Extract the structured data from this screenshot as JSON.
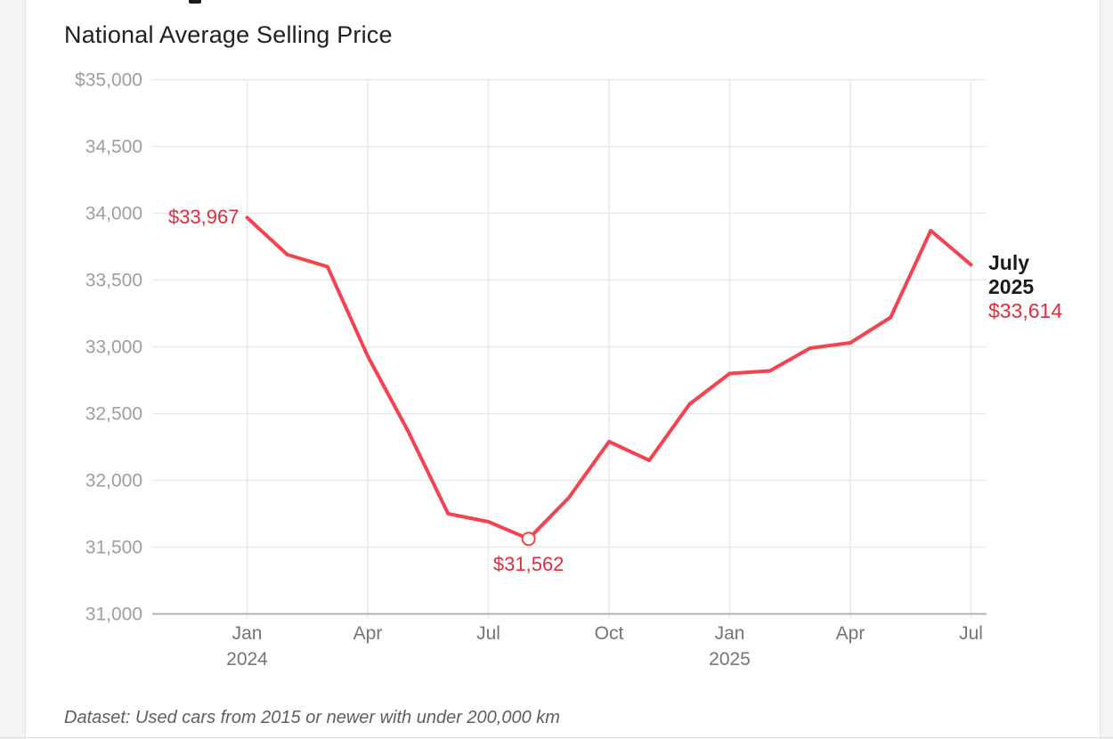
{
  "page": {
    "title": "National Average Selling Price",
    "caption": "Dataset: Used cars from 2015 or newer with under 200,000 km"
  },
  "colors": {
    "line": "#f4424e",
    "annotation_red": "#e22c3c",
    "annotation_black": "#1a1a1a",
    "grid": "#e9e9e9",
    "axis": "#b3b3b3",
    "y_tick_text": "#9e9e9e",
    "x_tick_text": "#757575",
    "marker_fill": "#ffffff"
  },
  "chart_data": {
    "type": "line",
    "title": "National Average Selling Price",
    "x": [
      "Jan 2024",
      "Feb 2024",
      "Mar 2024",
      "Apr 2024",
      "May 2024",
      "Jun 2024",
      "Jul 2024",
      "Aug 2024",
      "Sep 2024",
      "Oct 2024",
      "Nov 2024",
      "Dec 2024",
      "Jan 2025",
      "Feb 2025",
      "Mar 2025",
      "Apr 2025",
      "May 2025",
      "Jun 2025",
      "Jul 2025"
    ],
    "values": [
      33967,
      33690,
      33600,
      32930,
      32370,
      31750,
      31690,
      31562,
      31870,
      32290,
      32150,
      32570,
      32800,
      32820,
      32990,
      33030,
      33220,
      33870,
      33614
    ],
    "ylim": [
      31000,
      35000
    ],
    "grid": true,
    "legend": false,
    "y_ticks": [
      {
        "value": 35000,
        "label": "$35,000"
      },
      {
        "value": 34500,
        "label": "34,500"
      },
      {
        "value": 34000,
        "label": "34,000"
      },
      {
        "value": 33500,
        "label": "33,500"
      },
      {
        "value": 33000,
        "label": "33,000"
      },
      {
        "value": 32500,
        "label": "32,500"
      },
      {
        "value": 32000,
        "label": "32,000"
      },
      {
        "value": 31500,
        "label": "31,500"
      },
      {
        "value": 31000,
        "label": "31,000"
      }
    ],
    "x_ticks": [
      {
        "index": 0,
        "line1": "Jan",
        "line2": "2024"
      },
      {
        "index": 3,
        "line1": "Apr",
        "line2": ""
      },
      {
        "index": 6,
        "line1": "Jul",
        "line2": ""
      },
      {
        "index": 9,
        "line1": "Oct",
        "line2": ""
      },
      {
        "index": 12,
        "line1": "Jan",
        "line2": "2025"
      },
      {
        "index": 15,
        "line1": "Apr",
        "line2": ""
      },
      {
        "index": 18,
        "line1": "Jul",
        "line2": ""
      }
    ],
    "annotations": {
      "first": {
        "index": 0,
        "label": "$33,967"
      },
      "min": {
        "index": 7,
        "label": "$31,562",
        "marker": "open-circle"
      },
      "last": {
        "index": 18,
        "line1": "July",
        "line2": "2025",
        "value_label": "$33,614"
      }
    }
  }
}
